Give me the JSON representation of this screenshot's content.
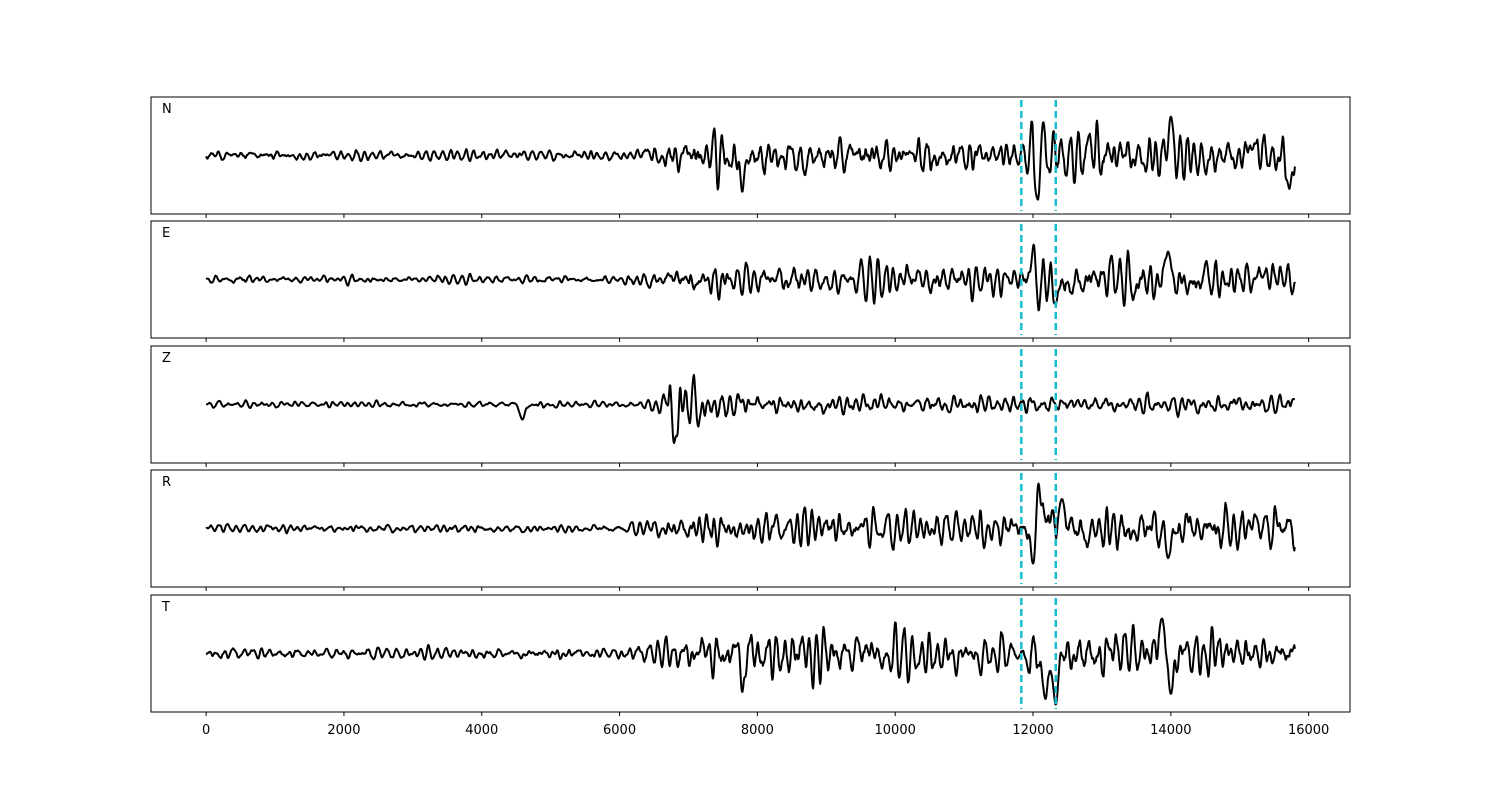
{
  "chart_data": {
    "type": "line",
    "title": "",
    "xlabel": "",
    "ylabel": "",
    "xlim": [
      -800,
      16600
    ],
    "ylim": [
      -1,
      1
    ],
    "x_ticks": [
      0,
      2000,
      4000,
      6000,
      8000,
      10000,
      12000,
      14000,
      16000
    ],
    "x_tick_labels": [
      "0",
      "2000",
      "4000",
      "6000",
      "8000",
      "10000",
      "12000",
      "14000",
      "16000"
    ],
    "x_range": [
      0,
      15800
    ],
    "grid": false,
    "legend": "none",
    "line_color": "#000000",
    "marker_color": "#17becf",
    "markers": [
      11830,
      12330
    ],
    "panels": [
      {
        "label": "N",
        "envelope": [
          [
            0,
            0.14
          ],
          [
            6000,
            0.14
          ],
          [
            6600,
            0.28
          ],
          [
            7200,
            0.55
          ],
          [
            9000,
            0.55
          ],
          [
            11600,
            0.45
          ],
          [
            11830,
            0.25
          ],
          [
            12000,
            0.85
          ],
          [
            12300,
            0.75
          ],
          [
            15800,
            0.55
          ]
        ],
        "peaks": [
          {
            "x": 7780,
            "y": 0.65
          },
          {
            "x": 7780,
            "y": -0.68
          },
          {
            "x": 12130,
            "y": 0.82
          },
          {
            "x": 12070,
            "y": -0.82
          },
          {
            "x": 14000,
            "y": 0.72
          },
          {
            "x": 15720,
            "y": -0.62
          }
        ]
      },
      {
        "label": "E",
        "envelope": [
          [
            0,
            0.1
          ],
          [
            6000,
            0.1
          ],
          [
            6600,
            0.25
          ],
          [
            7200,
            0.4
          ],
          [
            11500,
            0.42
          ],
          [
            11830,
            0.25
          ],
          [
            12000,
            0.7
          ],
          [
            12300,
            0.55
          ],
          [
            15800,
            0.45
          ]
        ],
        "peaks": [
          {
            "x": 12030,
            "y": -1.0
          },
          {
            "x": 12010,
            "y": 0.65
          },
          {
            "x": 13960,
            "y": 0.52
          },
          {
            "x": 12330,
            "y": -0.45
          }
        ]
      },
      {
        "label": "Z",
        "envelope": [
          [
            0,
            0.07
          ],
          [
            6300,
            0.07
          ],
          [
            6650,
            0.25
          ],
          [
            6750,
            0.9
          ],
          [
            7300,
            0.35
          ],
          [
            8000,
            0.22
          ],
          [
            15800,
            0.2
          ]
        ],
        "peaks": [
          {
            "x": 6760,
            "y": 0.98
          },
          {
            "x": 6790,
            "y": -0.72
          },
          {
            "x": 4590,
            "y": -0.28
          },
          {
            "x": 15800,
            "y": 0.1
          }
        ]
      },
      {
        "label": "R",
        "envelope": [
          [
            0,
            0.08
          ],
          [
            6000,
            0.08
          ],
          [
            6600,
            0.2
          ],
          [
            7200,
            0.32
          ],
          [
            11600,
            0.38
          ],
          [
            11830,
            0.25
          ],
          [
            12000,
            0.5
          ],
          [
            12400,
            0.5
          ],
          [
            15800,
            0.4
          ]
        ],
        "peaks": [
          {
            "x": 12070,
            "y": 1.0
          },
          {
            "x": 12000,
            "y": -0.65
          },
          {
            "x": 12420,
            "y": 0.55
          },
          {
            "x": 13960,
            "y": -0.55
          }
        ]
      },
      {
        "label": "T",
        "envelope": [
          [
            0,
            0.15
          ],
          [
            6000,
            0.15
          ],
          [
            6600,
            0.3
          ],
          [
            7200,
            0.6
          ],
          [
            11600,
            0.5
          ],
          [
            11830,
            0.25
          ],
          [
            12000,
            0.7
          ],
          [
            12400,
            0.6
          ],
          [
            15800,
            0.55
          ]
        ],
        "peaks": [
          {
            "x": 7750,
            "y": 0.78
          },
          {
            "x": 7780,
            "y": -0.72
          },
          {
            "x": 12330,
            "y": -0.95
          },
          {
            "x": 12180,
            "y": -0.85
          },
          {
            "x": 14000,
            "y": -0.75
          },
          {
            "x": 13870,
            "y": 0.65
          }
        ]
      }
    ]
  }
}
